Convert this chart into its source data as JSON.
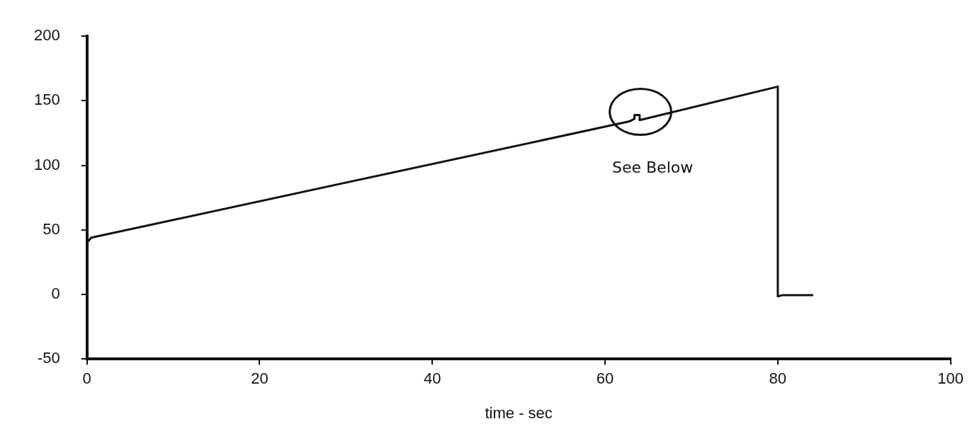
{
  "chart_data": {
    "type": "line",
    "xlabel": "time - sec",
    "x": [
      0,
      0.5,
      62.8,
      63.4,
      63.4,
      64.0,
      64.0,
      80.0,
      80.0,
      80.6,
      84.1
    ],
    "values": [
      40,
      44,
      134,
      136,
      139,
      139,
      135,
      161,
      -1.5,
      -0.5,
      -0.5
    ],
    "color": "#111111",
    "xlim": [
      0,
      100
    ],
    "xticks": [
      0,
      20,
      40,
      60,
      80,
      100
    ],
    "ylim": [
      -50,
      200
    ],
    "yticks": [
      -50,
      0,
      50,
      100,
      150,
      200
    ],
    "grid": false,
    "legend": false,
    "marker": "none",
    "line_style": "solid",
    "annotations": [
      "See Below"
    ]
  }
}
